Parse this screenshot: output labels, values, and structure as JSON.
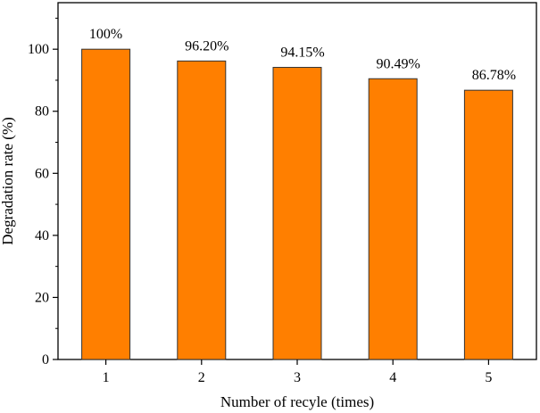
{
  "chart_data": {
    "type": "bar",
    "categories": [
      "1",
      "2",
      "3",
      "4",
      "5"
    ],
    "values": [
      100,
      96.2,
      94.15,
      90.49,
      86.78
    ],
    "data_labels": [
      "100%",
      "96.20%",
      "94.15%",
      "90.49%",
      "86.78%"
    ],
    "title": "",
    "xlabel": "Number of recyle (times)",
    "ylabel": "Degradation rate (%)",
    "ylim": [
      0,
      115
    ],
    "yticks": [
      0,
      20,
      40,
      60,
      80,
      100
    ],
    "grid": false,
    "legend": "none",
    "bar_color": "#FF7F00",
    "bar_edge_color": "#333333"
  }
}
